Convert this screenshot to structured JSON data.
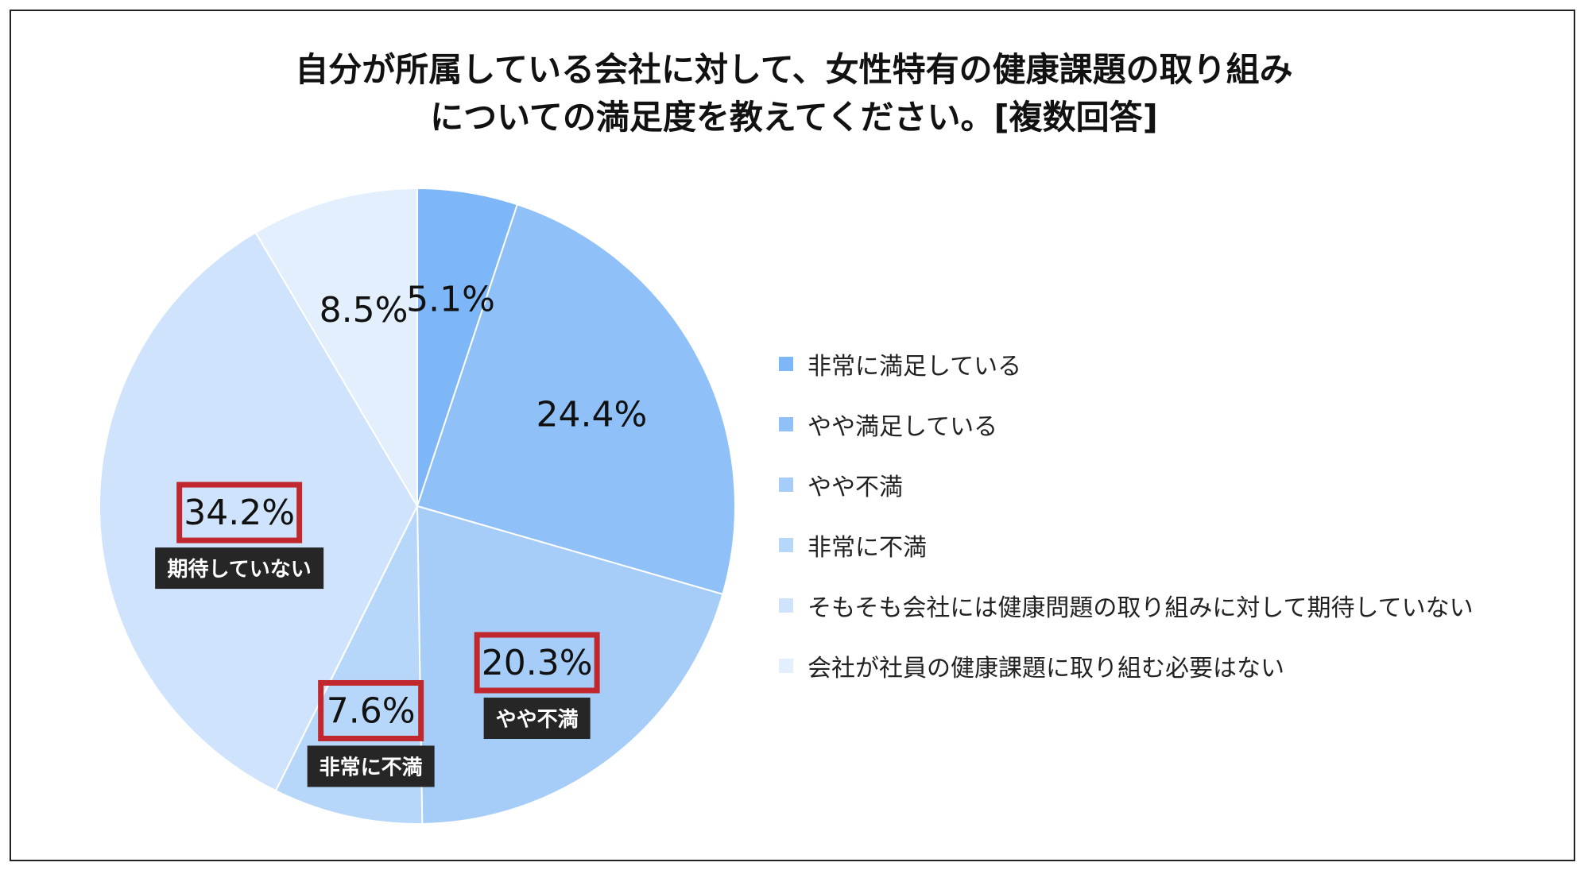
{
  "chart_data": {
    "type": "pie",
    "title_lines": [
      "自分が所属している会社に対して、女性特有の健康課題の取り組み",
      "についての満足度を教えてください。[複数回答]"
    ],
    "slices": [
      {
        "name": "非常に満足している",
        "value": 5.1,
        "label": "5.1%",
        "color": "#7db7f7",
        "highlight": false,
        "tag": ""
      },
      {
        "name": "やや満足している",
        "value": 24.4,
        "label": "24.4%",
        "color": "#8fc1f8",
        "highlight": false,
        "tag": ""
      },
      {
        "name": "やや不満",
        "value": 20.3,
        "label": "20.3%",
        "color": "#a6cdf8",
        "highlight": true,
        "tag": "やや不満"
      },
      {
        "name": "非常に不満",
        "value": 7.6,
        "label": "7.6%",
        "color": "#b7d7fa",
        "highlight": true,
        "tag": "非常に不満"
      },
      {
        "name": "そもそも会社には健康問題の取り組みに対して期待していない",
        "value": 34.2,
        "label": "34.2%",
        "color": "#cfe4fc",
        "highlight": true,
        "tag": "期待していない"
      },
      {
        "name": "会社が社員の健康課題に取り組む必要はない",
        "value": 8.5,
        "label": "8.5%",
        "color": "#e3effd",
        "highlight": false,
        "tag": ""
      }
    ],
    "legend_placement": "right"
  }
}
